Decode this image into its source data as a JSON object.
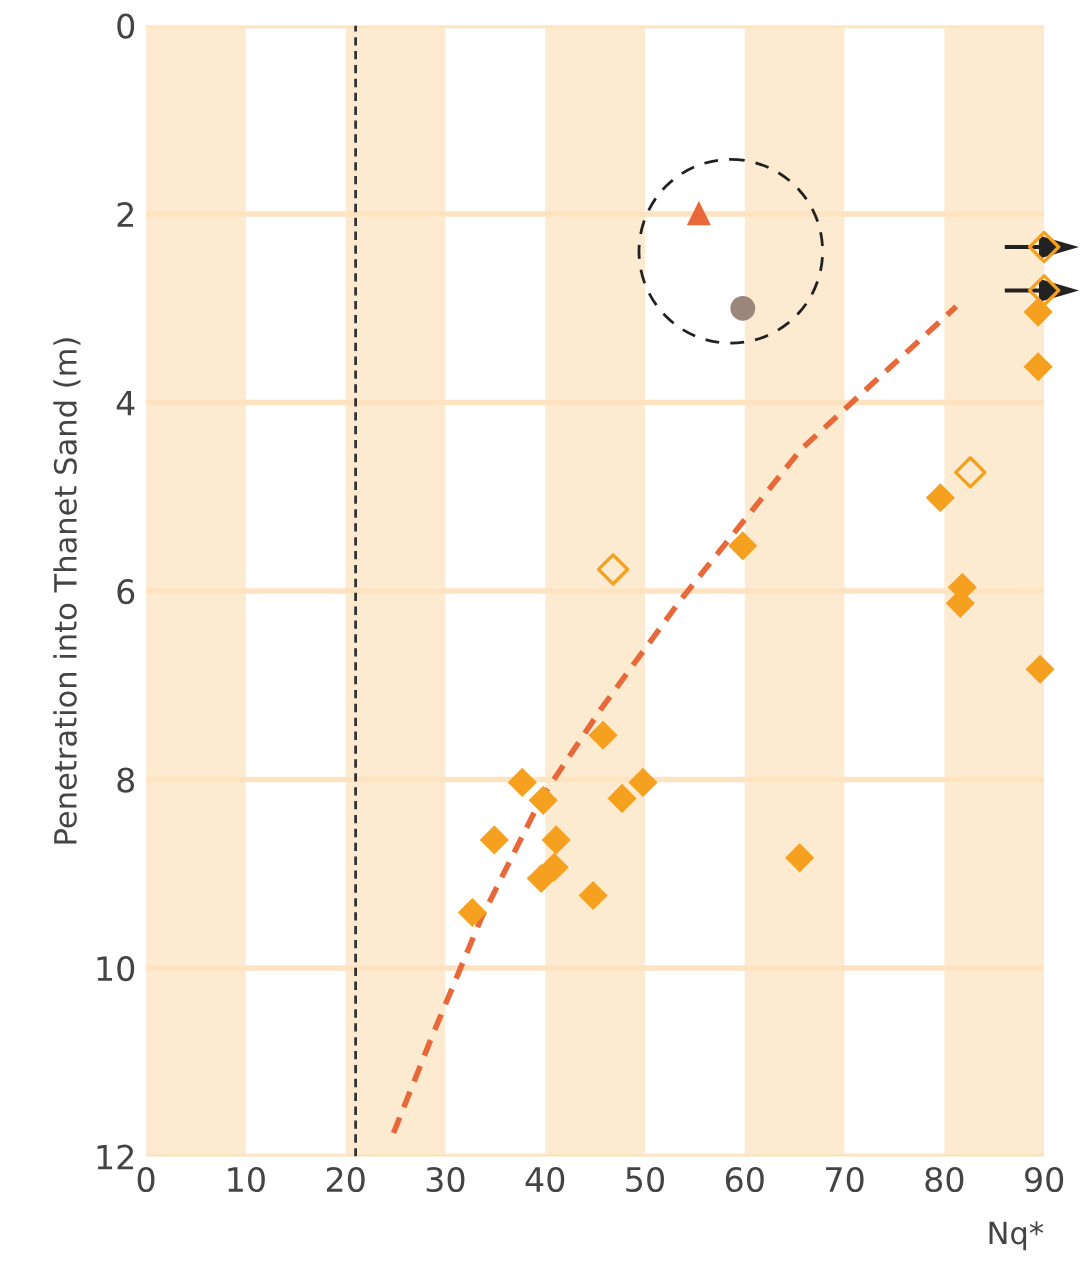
{
  "chart_data": {
    "type": "scatter",
    "xlabel": "Nq*",
    "ylabel": "Penetration into Thanet Sand (m)",
    "xlim": [
      0,
      90
    ],
    "ylim": [
      12,
      0
    ],
    "xticks": [
      0,
      10,
      20,
      30,
      40,
      50,
      60,
      70,
      80,
      90
    ],
    "yticks": [
      0,
      2,
      4,
      6,
      8,
      10,
      12
    ],
    "grid": "y",
    "series": [
      {
        "marker": "diamond",
        "color": "#f5a01e",
        "x": [
          59.8,
          79.6,
          81.8,
          81.6,
          89.6,
          89.4,
          89.4,
          45.8,
          37.7,
          49.8,
          39.8,
          47.7,
          34.9,
          41.1,
          40.9,
          39.6,
          44.8,
          32.7,
          65.5
        ],
        "values": [
          5.52,
          5.01,
          5.96,
          6.13,
          6.83,
          3.04,
          3.62,
          7.53,
          8.03,
          8.03,
          8.22,
          8.2,
          8.64,
          8.64,
          8.93,
          9.05,
          9.23,
          9.41,
          8.83
        ]
      },
      {
        "marker": "diamond",
        "color": "#f5a01e",
        "x": [
          46.8,
          82.6,
          90,
          90
        ],
        "values": [
          5.77,
          4.74,
          2.35,
          2.81
        ]
      },
      {
        "marker": "triangle",
        "color": "#e8683a",
        "x": [
          55.4
        ],
        "values": [
          1.99
        ]
      },
      {
        "marker": "circle",
        "color": "#9b877c",
        "x": [
          59.8
        ],
        "values": [
          3.0
        ]
      },
      {
        "type": "line",
        "line_style": "dashed",
        "color": "#e8683a",
        "x": [
          24.8,
          28.6,
          33.6,
          39.6,
          45.6,
          53.6,
          65.6,
          81.2
        ],
        "values": [
          11.75,
          10.74,
          9.47,
          8.2,
          7.25,
          6.09,
          4.5,
          2.98
        ]
      }
    ],
    "ref_lines": [
      {
        "axis": "x",
        "value": 21,
        "color": "#333333",
        "line_style": "dashed"
      }
    ],
    "bands": [
      {
        "axis": "x",
        "from": 0,
        "to": 10,
        "color": "#fdebd1"
      },
      {
        "axis": "x",
        "from": 20,
        "to": 30,
        "color": "#fdebd1"
      },
      {
        "axis": "x",
        "from": 40,
        "to": 50,
        "color": "#fdebd1"
      },
      {
        "axis": "x",
        "from": 60,
        "to": 70,
        "color": "#fdebd1"
      },
      {
        "axis": "x",
        "from": 80,
        "to": 90,
        "color": "#fdebd1"
      }
    ]
  }
}
